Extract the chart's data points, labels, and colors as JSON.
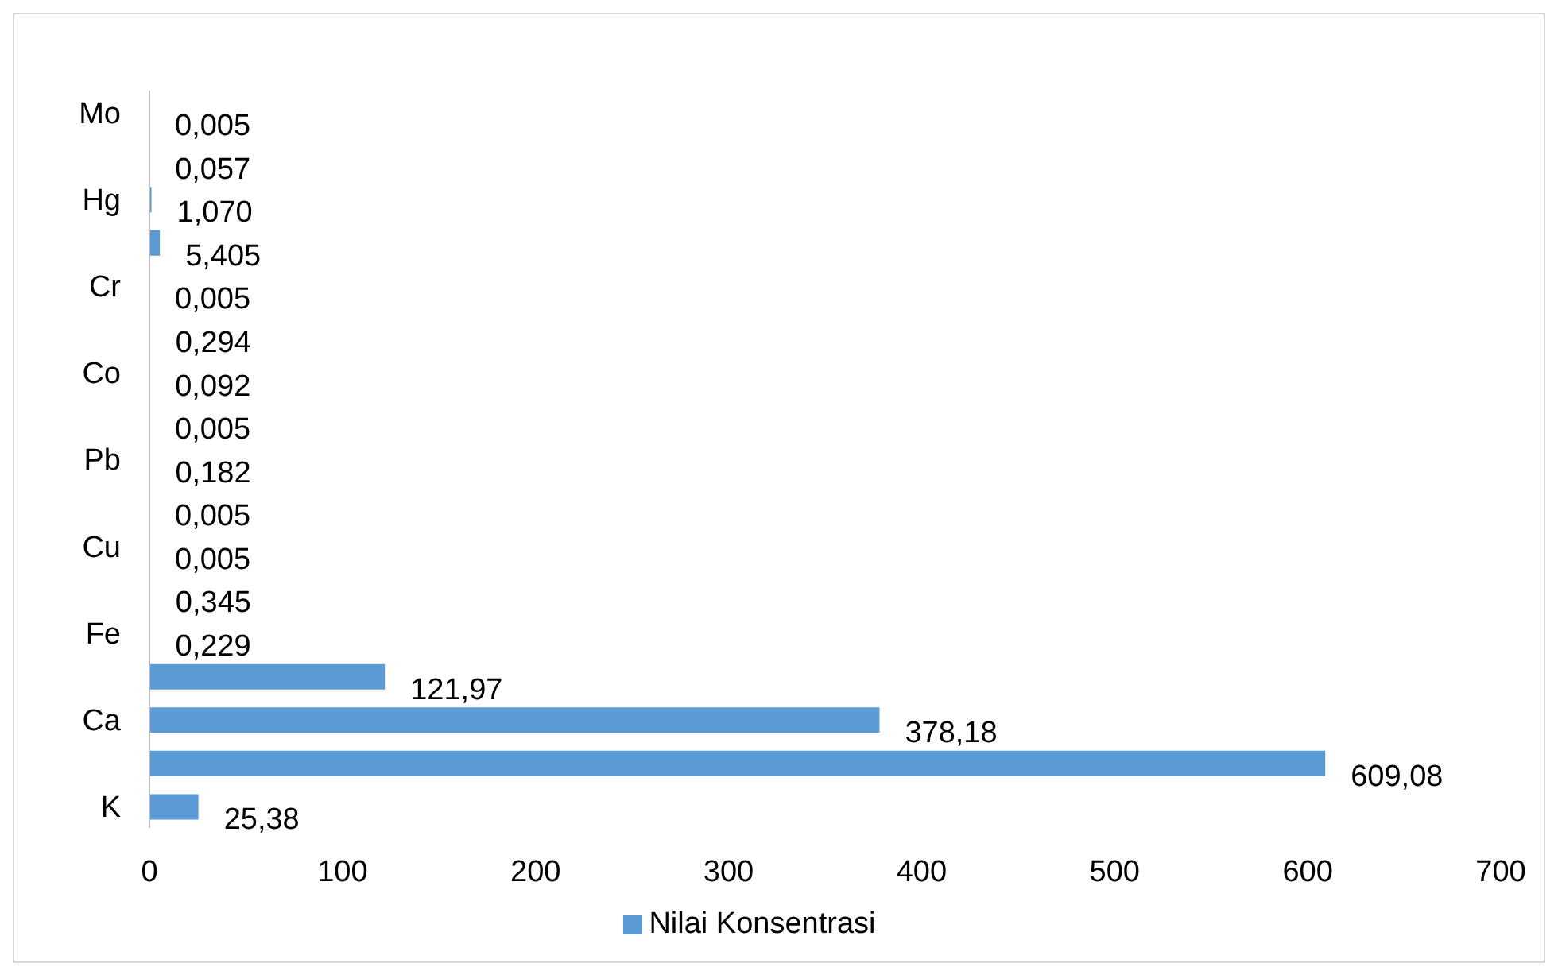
{
  "chart_data": {
    "type": "bar",
    "orientation": "horizontal",
    "categories": [
      "Mo",
      null,
      "Hg",
      null,
      "Cr",
      null,
      "Co",
      null,
      "Pb",
      null,
      "Cu",
      null,
      "Fe",
      null,
      "Ca",
      null,
      "K"
    ],
    "series": [
      {
        "name": "Nilai Konsentrasi",
        "color": "#5b9bd5",
        "values": [
          0.005,
          0.057,
          1.07,
          5.405,
          0.005,
          0.294,
          0.092,
          0.005,
          0.182,
          0.005,
          0.005,
          0.345,
          0.229,
          121.97,
          378.18,
          609.08,
          25.38
        ],
        "value_labels": [
          "0,005",
          "0,057",
          "1,070",
          "5,405",
          "0,005",
          "0,294",
          "0,092",
          "0,005",
          "0,182",
          "0,005",
          "0,005",
          "0,345",
          "0,229",
          "121,97",
          "378,18",
          "609,08",
          "25,38"
        ]
      }
    ],
    "xlim": [
      0,
      700
    ],
    "xticks": [
      0,
      100,
      200,
      300,
      400,
      500,
      600,
      700
    ],
    "legend": "bottom"
  }
}
